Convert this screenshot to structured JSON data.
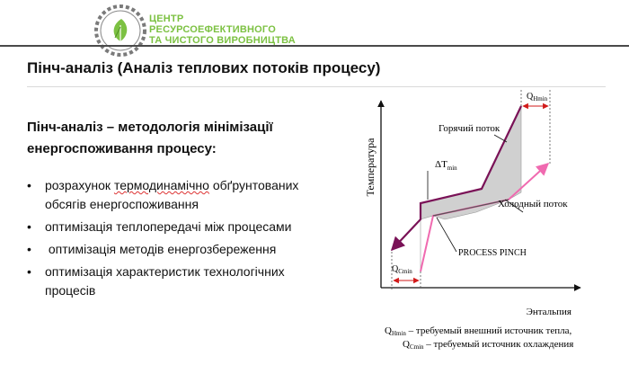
{
  "header": {
    "org_line1": "ЦЕНТР",
    "org_line2": "РЕСУРСОЕФЕКТИВНОГО",
    "org_line3": "ТА ЧИСТОГО ВИРОБНИЦТВА",
    "brand_color": "#7cc142"
  },
  "title": "Пінч-аналіз (Аналіз теплових потоків процесу)",
  "subtitle": "Пінч-аналіз – методологія мінімізації енергоспоживання процесу:",
  "bullets": [
    {
      "pre": "розрахунок ",
      "marked": "термодинамічно",
      "post": " обґрунтованих обсягів енергоспоживання"
    },
    {
      "text": "оптимізація теплопередачі між процесами"
    },
    {
      "text": " оптимізація методів енергозбереження"
    },
    {
      "text": "оптимізація характеристик технологічних процесів"
    }
  ],
  "bullet_char": "•",
  "diagram": {
    "y_axis": "Температура",
    "x_axis": "Энтальпия",
    "hot_label": "Горячий поток",
    "cold_label": "Холодный поток",
    "pinch_label": "PROCESS PINCH",
    "dt_main": "ΔT",
    "dt_sub": "min",
    "qh_main": "Q",
    "qh_sub": "Hmin",
    "qc_main": "Q",
    "qc_sub": "Cmin",
    "legend1_main": "Q",
    "legend1_sub": "Hmin",
    "legend1_text": " – требуемый внешний источник тепла,",
    "legend2_main": "Q",
    "legend2_sub": "Cmin",
    "legend2_text": " – требуемый источник охлаждения",
    "colors": {
      "hot": "#7a1257",
      "cold": "#f06ab0",
      "fill": "#d0d0d0",
      "dim_arrow": "#d11a1a"
    }
  }
}
